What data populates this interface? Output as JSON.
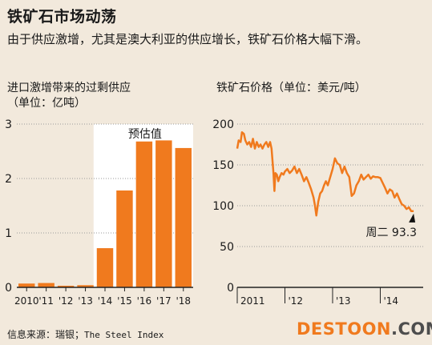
{
  "header": {
    "title": "铁矿石市场动荡",
    "subtitle": "由于供应激增，尤其是澳大利亚的供应增长，铁矿石价格大幅下滑。"
  },
  "colors": {
    "accent": "#f07a1e",
    "background": "#f2e9dc",
    "shade": "#ffffff"
  },
  "chart_data": [
    {
      "type": "bar",
      "title": "进口激增带来的过剩供应",
      "subtitle": "（单位：亿吨）",
      "categories": [
        "2010",
        "'11",
        "'12",
        "'13",
        "'14",
        "'15",
        "'16",
        "'17",
        "'18"
      ],
      "values": [
        0.07,
        0.08,
        0.03,
        0.04,
        0.72,
        1.78,
        2.68,
        2.7,
        2.56
      ],
      "ylim": [
        0,
        3
      ],
      "yticks": [
        0,
        1,
        2,
        3
      ],
      "grid": true,
      "annotation": {
        "text": "预估值",
        "applies_to": [
          "'14",
          "'15",
          "'16",
          "'17",
          "'18"
        ]
      }
    },
    {
      "type": "line",
      "title": "铁矿石价格（单位：美元/吨）",
      "xticks": [
        "2011",
        "'12",
        "'13",
        "'14"
      ],
      "xlim": [
        2011.0,
        2014.9
      ],
      "ylim": [
        0,
        200
      ],
      "yticks": [
        0,
        50,
        100,
        150,
        200
      ],
      "grid": true,
      "x": [
        2011.0,
        2011.03,
        2011.07,
        2011.1,
        2011.14,
        2011.17,
        2011.21,
        2011.25,
        2011.29,
        2011.33,
        2011.37,
        2011.41,
        2011.45,
        2011.49,
        2011.53,
        2011.57,
        2011.61,
        2011.65,
        2011.69,
        2011.72,
        2011.74,
        2011.76,
        2011.78,
        2011.8,
        2011.83,
        2011.86,
        2011.89,
        2011.93,
        2011.97,
        2012.0,
        2012.05,
        2012.1,
        2012.15,
        2012.2,
        2012.25,
        2012.3,
        2012.35,
        2012.4,
        2012.45,
        2012.5,
        2012.55,
        2012.6,
        2012.63,
        2012.66,
        2012.7,
        2012.74,
        2012.78,
        2012.82,
        2012.86,
        2012.9,
        2012.95,
        2013.0,
        2013.05,
        2013.1,
        2013.15,
        2013.2,
        2013.25,
        2013.3,
        2013.35,
        2013.4,
        2013.45,
        2013.5,
        2013.55,
        2013.6,
        2013.65,
        2013.7,
        2013.75,
        2013.8,
        2013.85,
        2013.9,
        2013.95,
        2014.0,
        2014.05,
        2014.1,
        2014.15,
        2014.2,
        2014.25,
        2014.3,
        2014.35,
        2014.4,
        2014.45,
        2014.5,
        2014.55,
        2014.6,
        2014.65,
        2014.7
      ],
      "values": [
        170,
        180,
        178,
        190,
        188,
        180,
        175,
        178,
        172,
        182,
        170,
        178,
        172,
        175,
        170,
        175,
        178,
        172,
        178,
        170,
        155,
        140,
        118,
        140,
        138,
        130,
        135,
        140,
        138,
        142,
        145,
        140,
        143,
        148,
        140,
        145,
        138,
        130,
        135,
        128,
        120,
        110,
        100,
        88,
        105,
        115,
        118,
        125,
        130,
        125,
        135,
        145,
        158,
        152,
        150,
        140,
        148,
        140,
        135,
        112,
        115,
        125,
        130,
        138,
        132,
        135,
        138,
        133,
        136,
        135,
        135,
        134,
        128,
        122,
        115,
        120,
        118,
        110,
        115,
        108,
        102,
        100,
        96,
        98,
        93.3,
        93.3
      ],
      "annotation": {
        "text": "周二 93.3",
        "value": 93.3
      }
    }
  ],
  "footer": {
    "source_label": "信息来源：瑞银；",
    "source_name": "The Steel Index",
    "logo_left": "DESTOON",
    "logo_right": ".COM"
  }
}
